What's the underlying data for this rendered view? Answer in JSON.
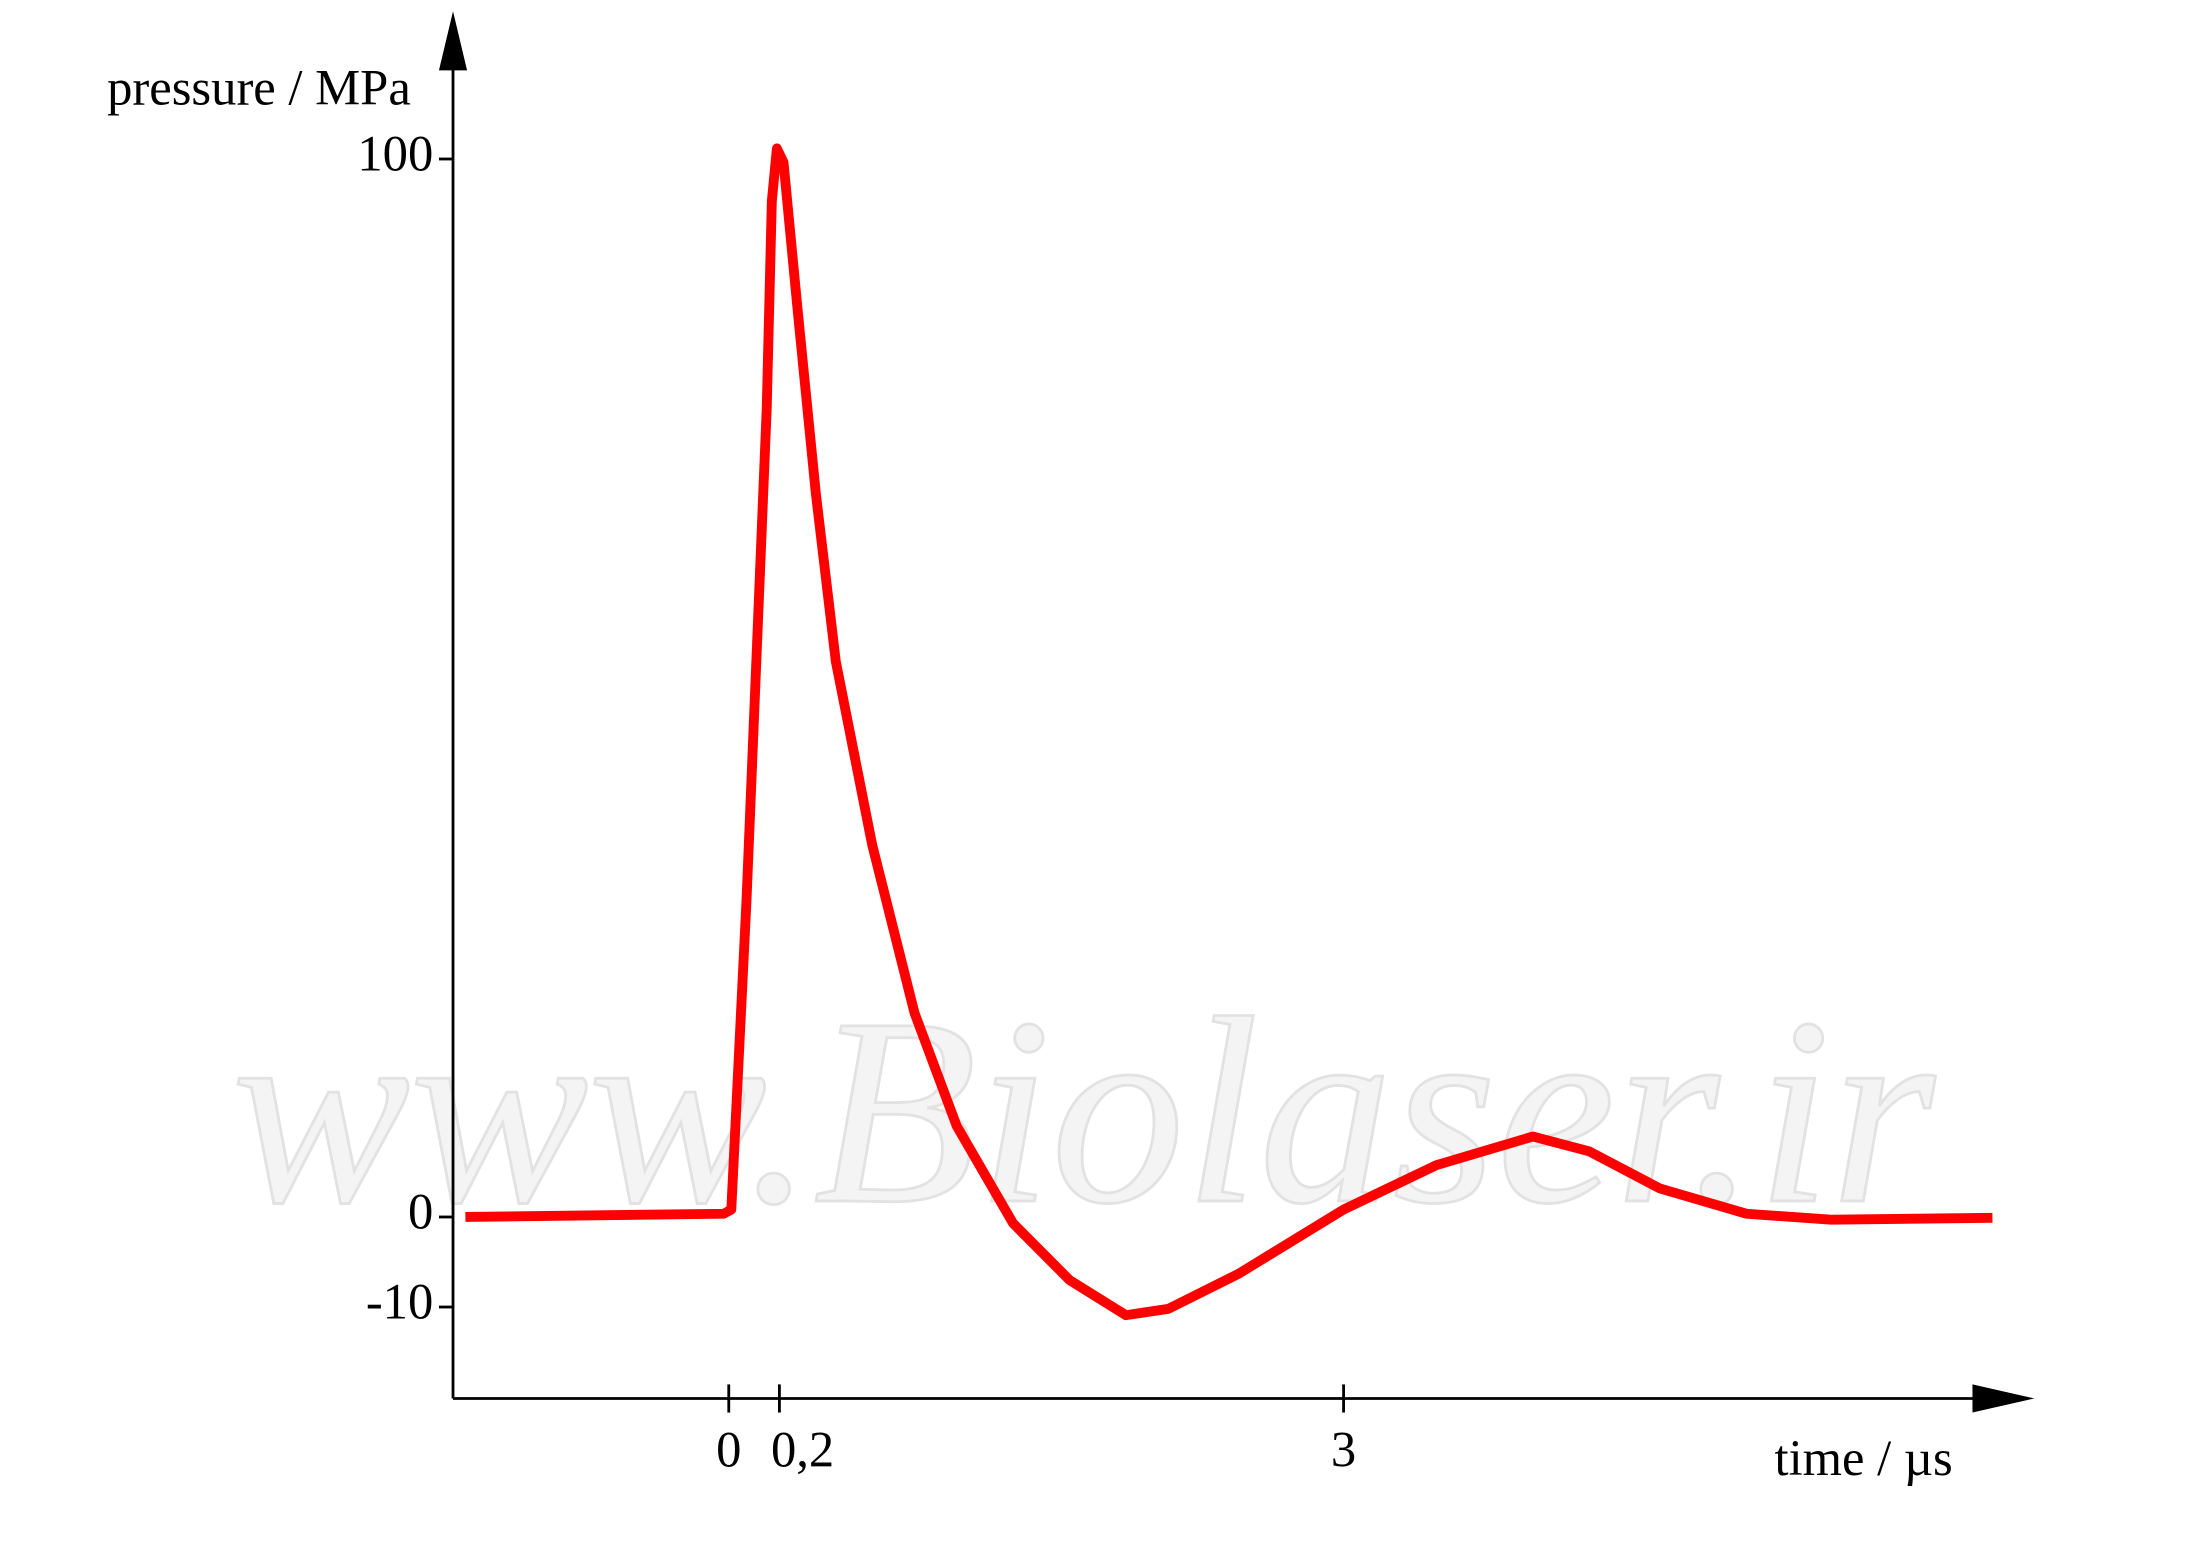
{
  "chart_data": {
    "type": "line",
    "y_label": "pressure / MPa",
    "x_label": "time / µs",
    "watermark": "www.Biolaser.ir",
    "xlim": [
      -1.1,
      6.4
    ],
    "ylim": [
      -20,
      114
    ],
    "xticks": [
      0,
      {
        "value": 0.2,
        "label": "0,2"
      },
      3
    ],
    "yticks": [
      -10,
      0,
      100
    ],
    "grid": false,
    "series": [
      {
        "color": "#ff0000",
        "x": [
          -1.04,
          -0.02,
          0.01,
          0.07,
          0.15,
          0.17,
          0.19,
          0.22,
          0.29,
          0.38,
          0.48,
          0.66,
          0.87,
          1.08,
          1.36,
          1.64,
          1.92,
          2.13,
          2.48,
          3.0,
          3.46,
          3.94,
          4.22,
          4.57,
          5.0,
          5.42,
          6.22
        ],
        "values": [
          0,
          0.3,
          0.7,
          29.9,
          76.5,
          96,
          101,
          99.7,
          85.8,
          68.5,
          52.5,
          35.2,
          19.3,
          8.6,
          -0.7,
          -7.0,
          -10.9,
          -10.2,
          -6.3,
          0.7,
          4.9,
          7.6,
          6.2,
          2.7,
          0.3,
          -0.3,
          -0.1
        ]
      }
    ]
  }
}
